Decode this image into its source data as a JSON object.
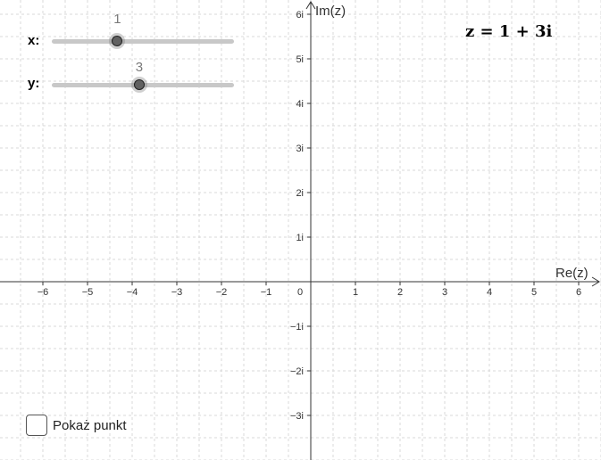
{
  "sliders": {
    "x": {
      "label": "x:",
      "value": 1,
      "value_text": "1",
      "min": -5,
      "max": 5
    },
    "y": {
      "label": "y:",
      "value": 3,
      "value_text": "3",
      "min": -5,
      "max": 5
    }
  },
  "formula": "z = 1 + 3i",
  "checkbox": {
    "label": "Pokaż punkt",
    "checked": false
  },
  "graph": {
    "xlabel": "Re(z)",
    "ylabel": "Im(z)",
    "origin_label": "0",
    "x_tick_labels": [
      "−6",
      "−5",
      "−4",
      "−3",
      "−2",
      "−1",
      "1",
      "2",
      "3",
      "4",
      "5",
      "6"
    ],
    "x_tick_values": [
      -6,
      -5,
      -4,
      -3,
      -2,
      -1,
      1,
      2,
      3,
      4,
      5,
      6
    ],
    "y_tick_labels": [
      "6i",
      "5i",
      "4i",
      "3i",
      "2i",
      "1i",
      "−1i",
      "−2i",
      "−3i"
    ],
    "y_tick_values": [
      6,
      5,
      4,
      3,
      2,
      1,
      -1,
      -2,
      -3
    ],
    "grid": true,
    "colors": {
      "grid": "#d8d8d8",
      "axis": "#333333"
    }
  }
}
